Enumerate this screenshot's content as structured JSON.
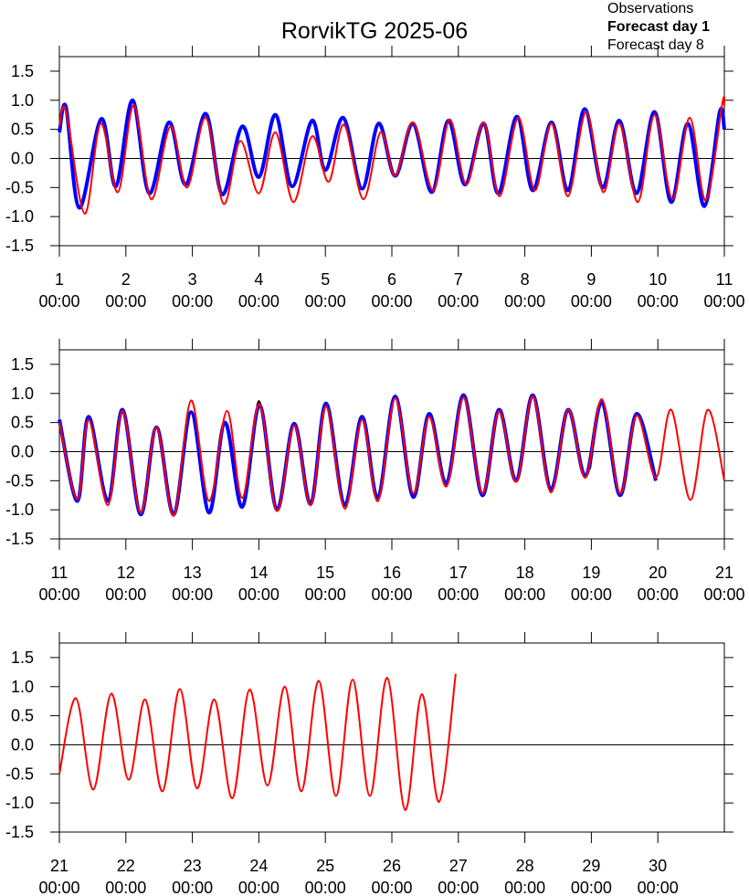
{
  "chart_data": [
    {
      "type": "line",
      "title": "RorvikTG 2025-06",
      "xlim": [
        1,
        11
      ],
      "ylim": [
        -1.5,
        1.75
      ],
      "hline": 0,
      "legend": "top-right",
      "xticks": [
        {
          "value": 1,
          "label": "1\n00:00"
        },
        {
          "value": 2,
          "label": "2\n00:00"
        },
        {
          "value": 3,
          "label": "3\n00:00"
        },
        {
          "value": 4,
          "label": "4\n00:00"
        },
        {
          "value": 5,
          "label": "5\n00:00"
        },
        {
          "value": 6,
          "label": "6\n00:00"
        },
        {
          "value": 7,
          "label": "7\n00:00"
        },
        {
          "value": 8,
          "label": "8\n00:00"
        },
        {
          "value": 9,
          "label": "9\n00:00"
        },
        {
          "value": 10,
          "label": "10\n00:00"
        },
        {
          "value": 11,
          "label": "11\n00:00"
        }
      ],
      "yticks": [
        1.5,
        {
          "value": 1,
          "label": "1.0"
        },
        0.5,
        {
          "value": 0,
          "label": "0.0"
        },
        -0.5,
        {
          "value": -1,
          "label": "-1.0"
        },
        -1.5
      ],
      "series": [
        {
          "name": "Observations",
          "color": "#000000",
          "width": 2,
          "bold": false,
          "x": [
            2.05,
            2.1,
            2.15
          ],
          "values": [
            0.9,
            1.0,
            0.9
          ]
        },
        {
          "name": "Forecast day 1",
          "color": "#0000ff",
          "width": 4,
          "bold": true,
          "x": [
            1.0,
            1.1,
            1.3,
            1.63,
            1.85,
            2.1,
            2.35,
            2.65,
            2.9,
            3.2,
            3.45,
            3.75,
            4.0,
            4.25,
            4.5,
            4.8,
            5.0,
            5.27,
            5.55,
            5.8,
            6.05,
            6.32,
            6.6,
            6.85,
            7.1,
            7.38,
            7.6,
            7.88,
            8.12,
            8.4,
            8.65,
            8.9,
            9.17,
            9.42,
            9.68,
            9.95,
            10.2,
            10.45,
            10.7,
            10.93,
            11.0
          ],
          "values": [
            0.45,
            0.88,
            -0.85,
            0.68,
            -0.48,
            1.0,
            -0.6,
            0.62,
            -0.45,
            0.77,
            -0.62,
            0.55,
            -0.32,
            0.75,
            -0.48,
            0.65,
            -0.2,
            0.7,
            -0.52,
            0.6,
            -0.3,
            0.6,
            -0.58,
            0.65,
            -0.45,
            0.6,
            -0.6,
            0.72,
            -0.55,
            0.62,
            -0.55,
            0.85,
            -0.5,
            0.65,
            -0.6,
            0.8,
            -0.75,
            0.6,
            -0.82,
            0.8,
            0.5
          ]
        },
        {
          "name": "Forecast day 8",
          "color": "#ff0000",
          "width": 2,
          "bold": false,
          "x": [
            1.0,
            1.1,
            1.38,
            1.62,
            1.88,
            2.12,
            2.38,
            2.67,
            2.92,
            3.2,
            3.47,
            3.72,
            4.0,
            4.25,
            4.52,
            4.8,
            5.05,
            5.28,
            5.57,
            5.83,
            6.05,
            6.32,
            6.62,
            6.87,
            7.12,
            7.38,
            7.62,
            7.9,
            8.15,
            8.4,
            8.65,
            8.92,
            9.18,
            9.42,
            9.7,
            9.95,
            10.22,
            10.48,
            10.72,
            10.97,
            11.0
          ],
          "values": [
            0.55,
            0.82,
            -0.95,
            0.6,
            -0.58,
            0.92,
            -0.7,
            0.55,
            -0.5,
            0.7,
            -0.78,
            0.3,
            -0.6,
            0.45,
            -0.75,
            0.38,
            -0.4,
            0.58,
            -0.7,
            0.45,
            -0.3,
            0.62,
            -0.55,
            0.67,
            -0.45,
            0.62,
            -0.65,
            0.7,
            -0.55,
            0.6,
            -0.65,
            0.8,
            -0.58,
            0.6,
            -0.75,
            0.75,
            -0.7,
            0.7,
            -0.72,
            0.95,
            0.9
          ]
        }
      ]
    },
    {
      "type": "line",
      "xlim": [
        11,
        21
      ],
      "ylim": [
        -1.5,
        1.75
      ],
      "hline": 0,
      "xticks": [
        {
          "value": 11,
          "label": "11\n00:00"
        },
        {
          "value": 12,
          "label": "12\n00:00"
        },
        {
          "value": 13,
          "label": "13\n00:00"
        },
        {
          "value": 14,
          "label": "14\n00:00"
        },
        {
          "value": 15,
          "label": "15\n00:00"
        },
        {
          "value": 16,
          "label": "16\n00:00"
        },
        {
          "value": 17,
          "label": "17\n00:00"
        },
        {
          "value": 18,
          "label": "18\n00:00"
        },
        {
          "value": 19,
          "label": "19\n00:00"
        },
        {
          "value": 20,
          "label": "20\n00:00"
        },
        {
          "value": 21,
          "label": "21\n00:00"
        }
      ],
      "yticks": [
        1.5,
        {
          "value": 1,
          "label": "1.0"
        },
        0.5,
        {
          "value": 0,
          "label": "0.0"
        },
        -0.5,
        {
          "value": -1,
          "label": "-1.0"
        },
        -1.5
      ],
      "series": [
        {
          "color": "#000000",
          "width": 2,
          "x": [
            13.97,
            14.0,
            14.03,
            14.5,
            18.98,
            19.02
          ],
          "values": [
            0.78,
            0.87,
            0.8,
            null,
            -0.3,
            0.0
          ]
        },
        {
          "color": "#0000ff",
          "width": 4,
          "x": [
            11.0,
            11.27,
            11.44,
            11.73,
            11.95,
            12.22,
            12.46,
            12.72,
            12.98,
            13.25,
            13.49,
            13.75,
            14.01,
            14.27,
            14.53,
            14.78,
            15.01,
            15.29,
            15.55,
            15.79,
            16.05,
            16.32,
            16.56,
            16.82,
            17.08,
            17.36,
            17.61,
            17.87,
            18.12,
            18.39,
            18.65,
            18.91,
            19.16,
            19.43,
            19.68,
            19.97
          ],
          "values": [
            0.55,
            -0.85,
            0.6,
            -0.85,
            0.72,
            -1.08,
            0.42,
            -1.08,
            0.68,
            -1.05,
            0.5,
            -0.95,
            0.8,
            -1.0,
            0.48,
            -0.9,
            0.83,
            -0.92,
            0.6,
            -0.8,
            0.95,
            -0.78,
            0.65,
            -0.55,
            0.97,
            -0.75,
            0.72,
            -0.5,
            0.97,
            -0.65,
            0.72,
            -0.42,
            0.85,
            -0.75,
            0.65,
            -0.5
          ]
        },
        {
          "color": "#ff0000",
          "width": 2,
          "x": [
            11.0,
            11.27,
            11.44,
            11.73,
            11.95,
            12.22,
            12.46,
            12.72,
            12.98,
            13.25,
            13.52,
            13.75,
            14.01,
            14.27,
            14.53,
            14.78,
            15.01,
            15.29,
            15.55,
            15.79,
            16.05,
            16.32,
            16.56,
            16.82,
            17.08,
            17.36,
            17.61,
            17.87,
            18.12,
            18.39,
            18.65,
            18.91,
            19.16,
            19.43,
            19.68,
            19.97,
            20.2,
            20.49,
            20.75,
            21.0
          ],
          "values": [
            0.5,
            -0.82,
            0.55,
            -0.92,
            0.7,
            -1.05,
            0.42,
            -1.1,
            0.88,
            -0.85,
            0.7,
            -0.8,
            0.82,
            -1.02,
            0.45,
            -0.92,
            0.78,
            -0.98,
            0.55,
            -0.85,
            0.92,
            -0.72,
            0.6,
            -0.6,
            0.93,
            -0.72,
            0.7,
            -0.52,
            0.95,
            -0.7,
            0.72,
            -0.45,
            0.9,
            -0.72,
            0.62,
            -0.45,
            0.72,
            -0.83,
            0.72,
            -0.5
          ]
        }
      ]
    },
    {
      "type": "line",
      "xlim": [
        21,
        31
      ],
      "ylim": [
        -1.5,
        1.75
      ],
      "hline": 0,
      "xticks": [
        {
          "value": 21,
          "label": "21\n00:00"
        },
        {
          "value": 22,
          "label": "22\n00:00"
        },
        {
          "value": 23,
          "label": "23\n00:00"
        },
        {
          "value": 24,
          "label": "24\n00:00"
        },
        {
          "value": 25,
          "label": "25\n00:00"
        },
        {
          "value": 26,
          "label": "26\n00:00"
        },
        {
          "value": 27,
          "label": "27\n00:00"
        },
        {
          "value": 28,
          "label": "28\n00:00"
        },
        {
          "value": 29,
          "label": "29\n00:00"
        },
        {
          "value": 30,
          "label": "30\n00:00"
        }
      ],
      "yticks": [
        1.5,
        {
          "value": 1,
          "label": "1.0"
        },
        0.5,
        {
          "value": 0,
          "label": "0.0"
        },
        -0.5,
        {
          "value": -1,
          "label": "-1.0"
        },
        -1.5
      ],
      "series": [
        {
          "color": "#ff0000",
          "width": 2,
          "x": [
            21.0,
            21.25,
            21.51,
            21.78,
            22.04,
            22.29,
            22.55,
            22.81,
            23.07,
            23.33,
            23.6,
            23.86,
            24.13,
            24.39,
            24.64,
            24.9,
            25.16,
            25.41,
            25.67,
            25.93,
            26.2,
            26.45,
            26.71,
            26.96
          ],
          "values": [
            -0.5,
            0.8,
            -0.77,
            0.88,
            -0.6,
            0.78,
            -0.8,
            0.96,
            -0.75,
            0.78,
            -0.92,
            0.95,
            -0.7,
            1.0,
            -0.8,
            1.1,
            -0.88,
            1.12,
            -0.88,
            1.15,
            -1.12,
            0.87,
            -0.98,
            1.22
          ]
        }
      ]
    }
  ]
}
